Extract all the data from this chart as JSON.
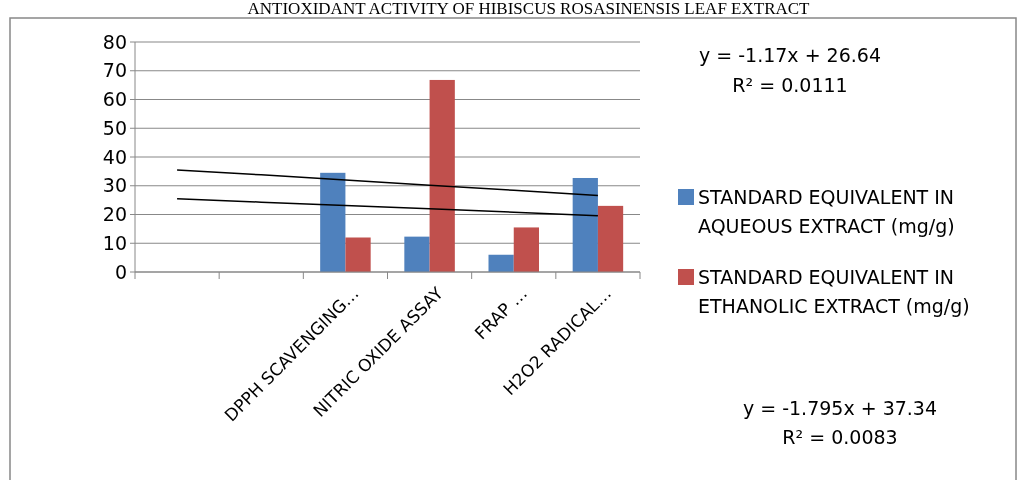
{
  "chart_data": {
    "type": "bar",
    "title": "ANTIOXIDANT ACTIVITY OF HIBISCUS ROSASINENSIS LEAF EXTRACT",
    "categories": [
      null,
      null,
      "DPPH SCAVENGING…",
      "NITRIC OXIDE ASSAY",
      "FRAP …",
      "H2O2 RADICAL…"
    ],
    "series": [
      {
        "name": "STANDARD EQUIVALENT IN AQUEOUS EXTRACT (mg/g)",
        "color": "#4f81bd",
        "values": [
          null,
          null,
          34.5,
          12.3,
          6,
          32.7
        ]
      },
      {
        "name": "STANDARD EQUIVALENT IN ETHANOLIC EXTRACT (mg/g)",
        "color": "#c0504d",
        "values": [
          null,
          null,
          12,
          66.8,
          15.5,
          23
        ]
      },
      {
        "type": "line",
        "color": "#000000",
        "values": [
          25.5,
          24.3,
          23.1,
          22,
          20.8,
          19.6
        ]
      },
      {
        "type": "line",
        "color": "#000000",
        "values": [
          35.5,
          33.8,
          32,
          30.2,
          28.4,
          26.6
        ]
      }
    ],
    "ylim": [
      0,
      80
    ],
    "yticks": [
      0,
      10,
      20,
      30,
      40,
      50,
      60,
      70,
      80
    ],
    "grid": "y",
    "legend": "right",
    "annotations": [
      "y = -1.17x + 26.64",
      "R² = 0.0111",
      "y = -1.795x + 37.34",
      "R² = 0.0083"
    ]
  }
}
